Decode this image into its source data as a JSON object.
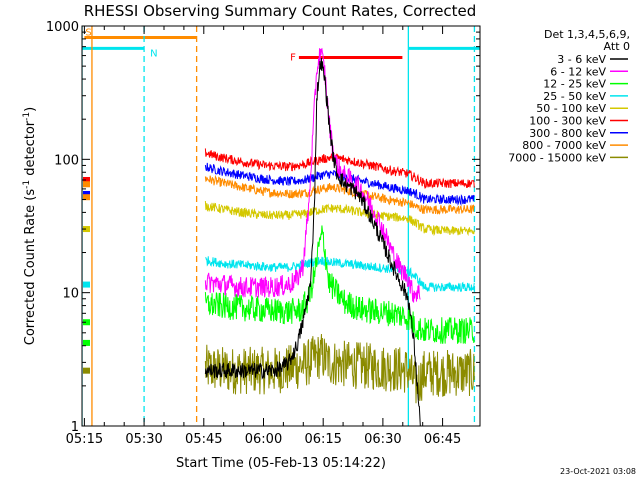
{
  "chart_data": {
    "type": "line",
    "title": "RHESSI Observing Summary Count Rates, Corrected",
    "xlabel": "Start Time (05-Feb-13 05:14:22)",
    "ylabel_main": "Corrected Count Rate (s",
    "ylabel_sup1": "-1",
    "ylabel_mid": " detector",
    "ylabel_sup2": "-1",
    "ylabel_end": ")",
    "x_range_min": [
      0,
      100
    ],
    "y_scale": "log",
    "ylim": [
      1,
      1000
    ],
    "x_ticks": [
      {
        "label": "05:15",
        "t": 0.6
      },
      {
        "label": "05:30",
        "t": 15.6
      },
      {
        "label": "05:45",
        "t": 30.6
      },
      {
        "label": "06:00",
        "t": 45.6
      },
      {
        "label": "06:15",
        "t": 60.6
      },
      {
        "label": "06:30",
        "t": 75.6
      },
      {
        "label": "06:45",
        "t": 90.6
      }
    ],
    "y_ticks": [
      {
        "label": "1",
        "v": 1
      },
      {
        "label": "10",
        "v": 10
      },
      {
        "label": "100",
        "v": 100
      },
      {
        "label": "1000",
        "v": 1000
      }
    ],
    "legend_header": [
      "Det 1,3,4,5,6,9,",
      "Att 0"
    ],
    "timestamp": "23-Oct-2021 03:08",
    "flags": [
      {
        "letter": "S",
        "color": "#ff8c00",
        "t0": 0.6,
        "t1": 28.8,
        "level": 820
      },
      {
        "letter": "N",
        "color": "#00e5ee",
        "t0": 0.0,
        "t1": 15.6,
        "level": 680
      },
      {
        "letter": "N",
        "color": "#00e5ee",
        "t0": 82.0,
        "t1": 100.0,
        "level": 680
      },
      {
        "letter": "F",
        "color": "#ff0000",
        "t0": 54.5,
        "t1": 80.5,
        "level": 580
      }
    ],
    "markers": [
      {
        "t": 0.0,
        "color": "#00e5ee",
        "style": "solid"
      },
      {
        "t": 2.5,
        "color": "#ff8c00",
        "style": "solid"
      },
      {
        "t": 15.6,
        "color": "#00e5ee",
        "style": "dashed"
      },
      {
        "t": 28.8,
        "color": "#ff8c00",
        "style": "dashed"
      },
      {
        "t": 82.0,
        "color": "#00e5ee",
        "style": "solid"
      },
      {
        "t": 98.6,
        "color": "#00e5ee",
        "style": "dashed"
      }
    ],
    "series": [
      {
        "name": "3 - 6 keV",
        "color": "#000000",
        "t": [
          31.0,
          40,
          48,
          50,
          52,
          54,
          55.5,
          57.5,
          58.5,
          59,
          60,
          61,
          62,
          63,
          64,
          66,
          68,
          70,
          72,
          74,
          76,
          78,
          80,
          82,
          83.5,
          85
        ],
        "y": [
          2.6,
          2.6,
          2.6,
          2.7,
          3,
          4,
          6,
          12,
          60,
          300,
          550,
          400,
          200,
          110,
          80,
          65,
          60,
          52,
          40,
          30,
          22,
          16,
          12,
          9,
          4,
          1.0
        ]
      },
      {
        "name": "6 - 12 keV",
        "color": "#ff00ff",
        "t": [
          31.0,
          36,
          40,
          44,
          48,
          52,
          54,
          55.5,
          57,
          58,
          59,
          60,
          61,
          62,
          63,
          64,
          66,
          68,
          70,
          72,
          74,
          76,
          78,
          80,
          82,
          83,
          85
        ],
        "y": [
          12,
          11.5,
          11,
          11,
          11,
          11.5,
          12.5,
          16,
          45,
          150,
          480,
          650,
          450,
          200,
          120,
          90,
          75,
          68,
          60,
          48,
          38,
          28,
          20,
          15,
          13,
          10,
          10
        ]
      },
      {
        "name": "12 - 25 keV",
        "color": "#00ff00",
        "t": [
          31.0,
          38,
          44,
          48,
          52,
          55,
          57,
          58.5,
          59.5,
          60.5,
          62,
          64,
          66,
          70,
          74,
          78,
          80,
          82,
          84,
          86,
          92,
          98.6
        ],
        "y": [
          8.2,
          7.8,
          7.5,
          7.3,
          7.2,
          7.4,
          9,
          14,
          22,
          28,
          12,
          10,
          8.5,
          7.5,
          7.2,
          7,
          6.8,
          6.5,
          5.5,
          5.2,
          5.2,
          5.2
        ]
      },
      {
        "name": "25 - 50 keV",
        "color": "#00e5ee",
        "t": [
          31.0,
          36,
          42,
          48,
          52,
          55,
          58,
          60,
          62,
          66,
          70,
          74,
          78,
          82,
          84,
          86,
          92,
          98.6
        ],
        "y": [
          17.5,
          16.5,
          16,
          15.5,
          15.5,
          16,
          17,
          17.5,
          17,
          16.5,
          16,
          15.5,
          15,
          14.5,
          13,
          11,
          11,
          11
        ]
      },
      {
        "name": "50 - 100 keV",
        "color": "#d4c800",
        "t": [
          31.0,
          34,
          40,
          46,
          52,
          56,
          60,
          63,
          66,
          70,
          74,
          78,
          82,
          84,
          86,
          92,
          98.6
        ],
        "y": [
          45,
          43,
          40,
          38,
          38,
          39,
          42,
          43,
          42,
          40,
          38,
          37,
          36,
          33,
          30,
          29,
          29
        ]
      },
      {
        "name": "100 - 300 keV",
        "color": "#ff0000",
        "t": [
          31.0,
          34,
          40,
          46,
          52,
          56,
          60,
          63,
          66,
          70,
          74,
          78,
          82,
          84,
          86,
          92,
          98.6
        ],
        "y": [
          112,
          105,
          96,
          90,
          88,
          92,
          100,
          104,
          100,
          94,
          88,
          82,
          78,
          72,
          66,
          66,
          66
        ]
      },
      {
        "name": "300 - 800 keV",
        "color": "#0000ff",
        "t": [
          31.0,
          34,
          40,
          46,
          52,
          56,
          60,
          63,
          66,
          70,
          74,
          78,
          82,
          84,
          86,
          92,
          98.6
        ],
        "y": [
          88,
          83,
          76,
          71,
          68,
          70,
          76,
          78,
          74,
          69,
          65,
          61,
          58,
          55,
          50,
          50,
          50
        ]
      },
      {
        "name": "800 - 7000 keV",
        "color": "#ff8c00",
        "t": [
          31.0,
          34,
          40,
          46,
          52,
          56,
          60,
          63,
          66,
          70,
          74,
          78,
          82,
          84,
          86,
          92,
          98.6
        ],
        "y": [
          72,
          68,
          62,
          57,
          55,
          56,
          60,
          62,
          59,
          55,
          52,
          49,
          47,
          44,
          42,
          42,
          42
        ]
      },
      {
        "name": "7000 - 15000 keV",
        "color": "#8b8b00",
        "t": [
          31.0,
          38,
          44,
          48,
          52,
          56,
          60,
          62,
          66,
          72,
          78,
          82,
          84,
          86,
          92,
          98.6
        ],
        "y": [
          2.7,
          2.6,
          2.6,
          2.6,
          2.7,
          2.9,
          3.4,
          3.0,
          2.9,
          2.8,
          2.7,
          2.6,
          2.0,
          2.5,
          2.5,
          2.5
        ]
      }
    ],
    "left_stubs": [
      {
        "color": "#ff0000",
        "y": 70
      },
      {
        "color": "#ff8c00",
        "y": 65
      },
      {
        "color": "#0000ff",
        "y": 55
      },
      {
        "color": "#ff8c00",
        "y": 52
      },
      {
        "color": "#d4c800",
        "y": 30
      },
      {
        "color": "#00e5ee",
        "y": 11.5
      },
      {
        "color": "#00ff00",
        "y": 6
      },
      {
        "color": "#00ff00",
        "y": 4.2
      },
      {
        "color": "#8b8b00",
        "y": 2.6
      }
    ]
  }
}
